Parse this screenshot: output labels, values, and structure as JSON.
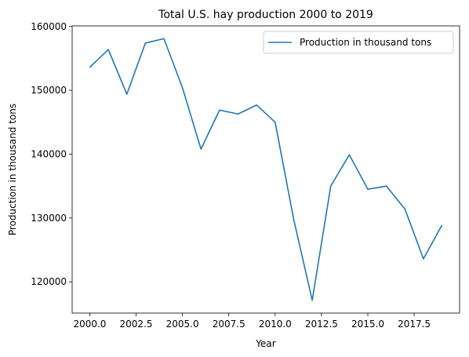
{
  "chart_data": {
    "type": "line",
    "title": "Total U.S. hay production 2000 to 2019",
    "xlabel": "Year",
    "ylabel": "Production in thousand tons",
    "xlim": [
      1999.05,
      2019.95
    ],
    "ylim": [
      115100,
      160100
    ],
    "x_ticks": [
      2000.0,
      2002.5,
      2005.0,
      2007.5,
      2010.0,
      2012.5,
      2015.0,
      2017.5
    ],
    "x_tick_labels": [
      "2000.0",
      "2002.5",
      "2005.0",
      "2007.5",
      "2010.0",
      "2012.5",
      "2015.0",
      "2017.5"
    ],
    "y_ticks": [
      120000,
      130000,
      140000,
      150000,
      160000
    ],
    "y_tick_labels": [
      "120000",
      "130000",
      "140000",
      "150000",
      "160000"
    ],
    "grid": false,
    "legend_position": "upper right",
    "series": [
      {
        "name": "Production in thousand tons",
        "color": "#1f77b4",
        "x": [
          2000,
          2001,
          2002,
          2003,
          2004,
          2005,
          2006,
          2007,
          2008,
          2009,
          2010,
          2011,
          2012,
          2013,
          2014,
          2015,
          2016,
          2017,
          2018,
          2019
        ],
        "y": [
          153600,
          156400,
          149400,
          157400,
          158100,
          150400,
          140800,
          146900,
          146300,
          147700,
          145000,
          129800,
          117100,
          135000,
          139900,
          134500,
          135000,
          131400,
          123600,
          128900
        ]
      }
    ]
  }
}
